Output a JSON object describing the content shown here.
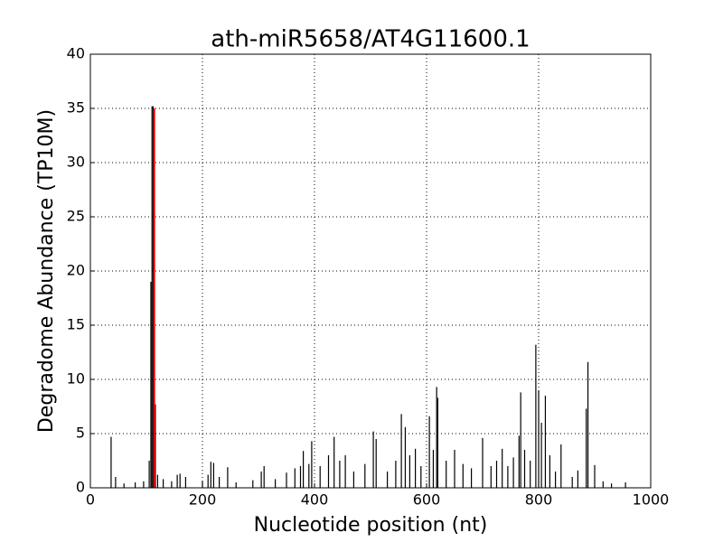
{
  "chart_data": {
    "type": "bar",
    "title": "ath-miR5658/AT4G11600.1",
    "xlabel": "Nucleotide position (nt)",
    "ylabel": "Degradome Abundance (TP10M)",
    "xlim": [
      0,
      1000
    ],
    "xticks": [
      0,
      200,
      400,
      600,
      800,
      1000
    ],
    "ylim": [
      0,
      40
    ],
    "yticks": [
      0,
      5,
      10,
      15,
      20,
      25,
      30,
      35,
      40
    ],
    "grid": true,
    "series": [
      {
        "color": "#000000",
        "x": [
          37,
          45,
          60,
          80,
          95,
          105,
          108,
          110,
          112,
          116,
          120,
          130,
          145,
          155,
          160,
          170,
          200,
          210,
          215,
          220,
          230,
          245,
          260,
          290,
          305,
          310,
          330,
          350,
          365,
          375,
          380,
          390,
          395,
          410,
          425,
          435,
          445,
          455,
          470,
          490,
          505,
          510,
          530,
          545,
          555,
          562,
          570,
          580,
          590,
          605,
          612,
          618,
          620,
          635,
          650,
          665,
          680,
          700,
          715,
          725,
          735,
          745,
          755,
          765,
          768,
          775,
          785,
          795,
          800,
          805,
          812,
          820,
          830,
          840,
          860,
          870,
          885,
          888,
          900,
          915,
          930,
          955
        ],
        "values": [
          4.7,
          1.0,
          0.4,
          0.5,
          0.6,
          2.5,
          19,
          35.2,
          35.2,
          7.7,
          1.2,
          0.8,
          0.6,
          1.2,
          1.3,
          1.0,
          0.6,
          1.2,
          2.4,
          2.3,
          1.0,
          1.9,
          0.5,
          0.7,
          1.5,
          2.0,
          0.8,
          1.4,
          1.8,
          2.0,
          3.4,
          2.2,
          4.3,
          2.0,
          3.0,
          4.7,
          2.5,
          3.0,
          1.5,
          2.2,
          5.2,
          4.5,
          1.5,
          2.5,
          6.8,
          5.6,
          3.0,
          3.6,
          2.0,
          6.6,
          3.5,
          9.3,
          8.3,
          2.5,
          3.5,
          2.2,
          1.8,
          4.6,
          2.0,
          2.5,
          3.6,
          2.0,
          2.8,
          4.8,
          8.8,
          3.5,
          2.5,
          13.2,
          9.0,
          6.0,
          8.5,
          3.0,
          1.5,
          4.0,
          1.0,
          1.6,
          7.3,
          11.6,
          2.1,
          0.6,
          0.4,
          0.5
        ]
      },
      {
        "color": "#ff0000",
        "x": [
          114
        ],
        "values": [
          35
        ]
      }
    ]
  }
}
